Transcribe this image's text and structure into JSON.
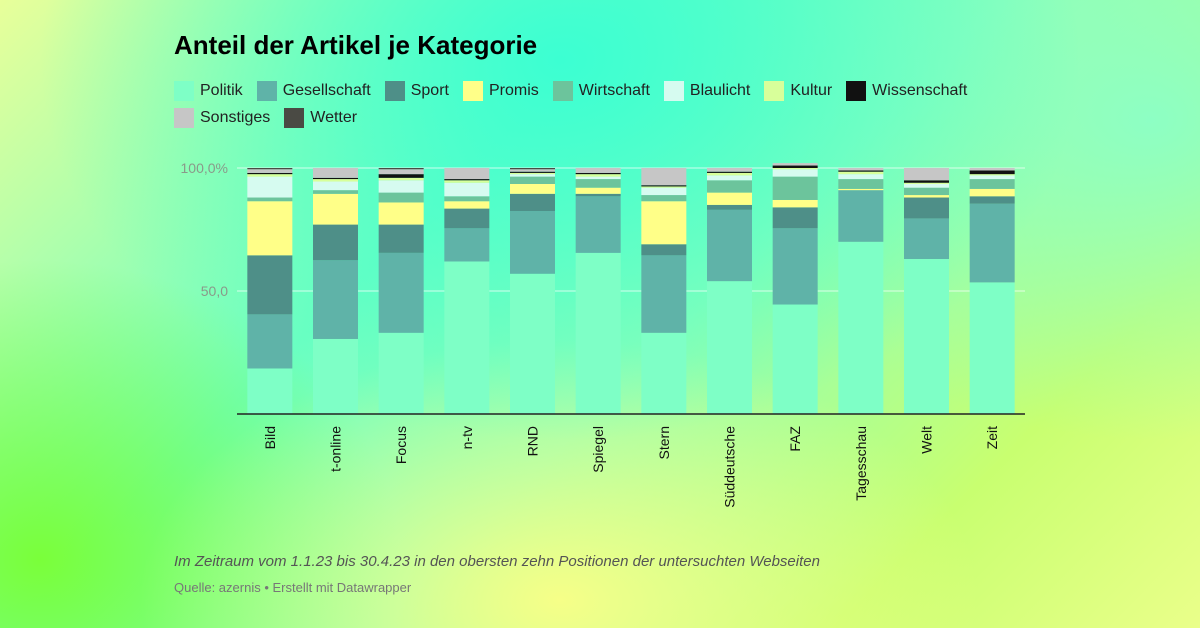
{
  "footnote": "Im Zeitraum vom 1.1.23 bis 30.4.23 in den obersten zehn Positionen der untersuchten Webseiten",
  "source": "Quelle: azernis • Erstellt mit Datawrapper",
  "chart_data": {
    "type": "bar",
    "stacked": true,
    "title": "Anteil der Artikel je Kategorie",
    "xlabel": "",
    "ylabel": "",
    "ylim": [
      0,
      100
    ],
    "y_ticks": [
      {
        "value": 50,
        "label": "50,0"
      },
      {
        "value": 100,
        "label": "100,0%"
      }
    ],
    "grid": true,
    "legend_position": "top",
    "categories": [
      "Bild",
      "t-online",
      "Focus",
      "n-tv",
      "RND",
      "Spiegel",
      "Stern",
      "Süddeutsche",
      "FAZ",
      "Tagesschau",
      "Welt",
      "Zeit"
    ],
    "series": [
      {
        "name": "Politik",
        "color": "#7effc6",
        "values": [
          18.5,
          30.5,
          33,
          62,
          57,
          65.5,
          33,
          54,
          44.5,
          70,
          63,
          53.5
        ]
      },
      {
        "name": "Gesellschaft",
        "color": "#5fb3a8",
        "values": [
          22,
          32,
          32.5,
          13.5,
          25.5,
          23,
          31.5,
          29,
          31,
          21,
          16.5,
          32
        ]
      },
      {
        "name": "Sport",
        "color": "#4e8f88",
        "values": [
          24,
          14.5,
          11.5,
          8,
          7,
          1,
          4.5,
          2,
          8.5,
          0,
          8.5,
          3
        ]
      },
      {
        "name": "Promis",
        "color": "#ffff88",
        "values": [
          22,
          12.5,
          9,
          3,
          4,
          2.5,
          17.5,
          5,
          3,
          0.5,
          1,
          3
        ]
      },
      {
        "name": "Wirtschaft",
        "color": "#6cc49c",
        "values": [
          1.5,
          1.5,
          4,
          2,
          3,
          3.5,
          2.5,
          5,
          9.5,
          4,
          3,
          4
        ]
      },
      {
        "name": "Blaulicht",
        "color": "#d6fbf0",
        "values": [
          8.5,
          3.5,
          5,
          5.5,
          1,
          1,
          3,
          2,
          3,
          2,
          1.5,
          1.5
        ]
      },
      {
        "name": "Kultur",
        "color": "#d8ff9a",
        "values": [
          1,
          1,
          1,
          1,
          0.5,
          1,
          0.5,
          1,
          0.5,
          1,
          0.5,
          0.5
        ]
      },
      {
        "name": "Wissenschaft",
        "color": "#111111",
        "values": [
          0.5,
          0.5,
          1.5,
          0.5,
          0.5,
          0.5,
          0.5,
          0.5,
          1,
          0.5,
          1,
          1.5
        ]
      },
      {
        "name": "Sonstiges",
        "color": "#c6c6c6",
        "values": [
          1.5,
          4,
          2,
          4.5,
          1,
          2,
          7,
          1.5,
          1,
          1,
          5,
          1
        ]
      },
      {
        "name": "Wetter",
        "color": "#4a4a44",
        "values": [
          0.5,
          0,
          0.5,
          0,
          0.5,
          0,
          0,
          0,
          0,
          0,
          0,
          0
        ]
      }
    ]
  }
}
